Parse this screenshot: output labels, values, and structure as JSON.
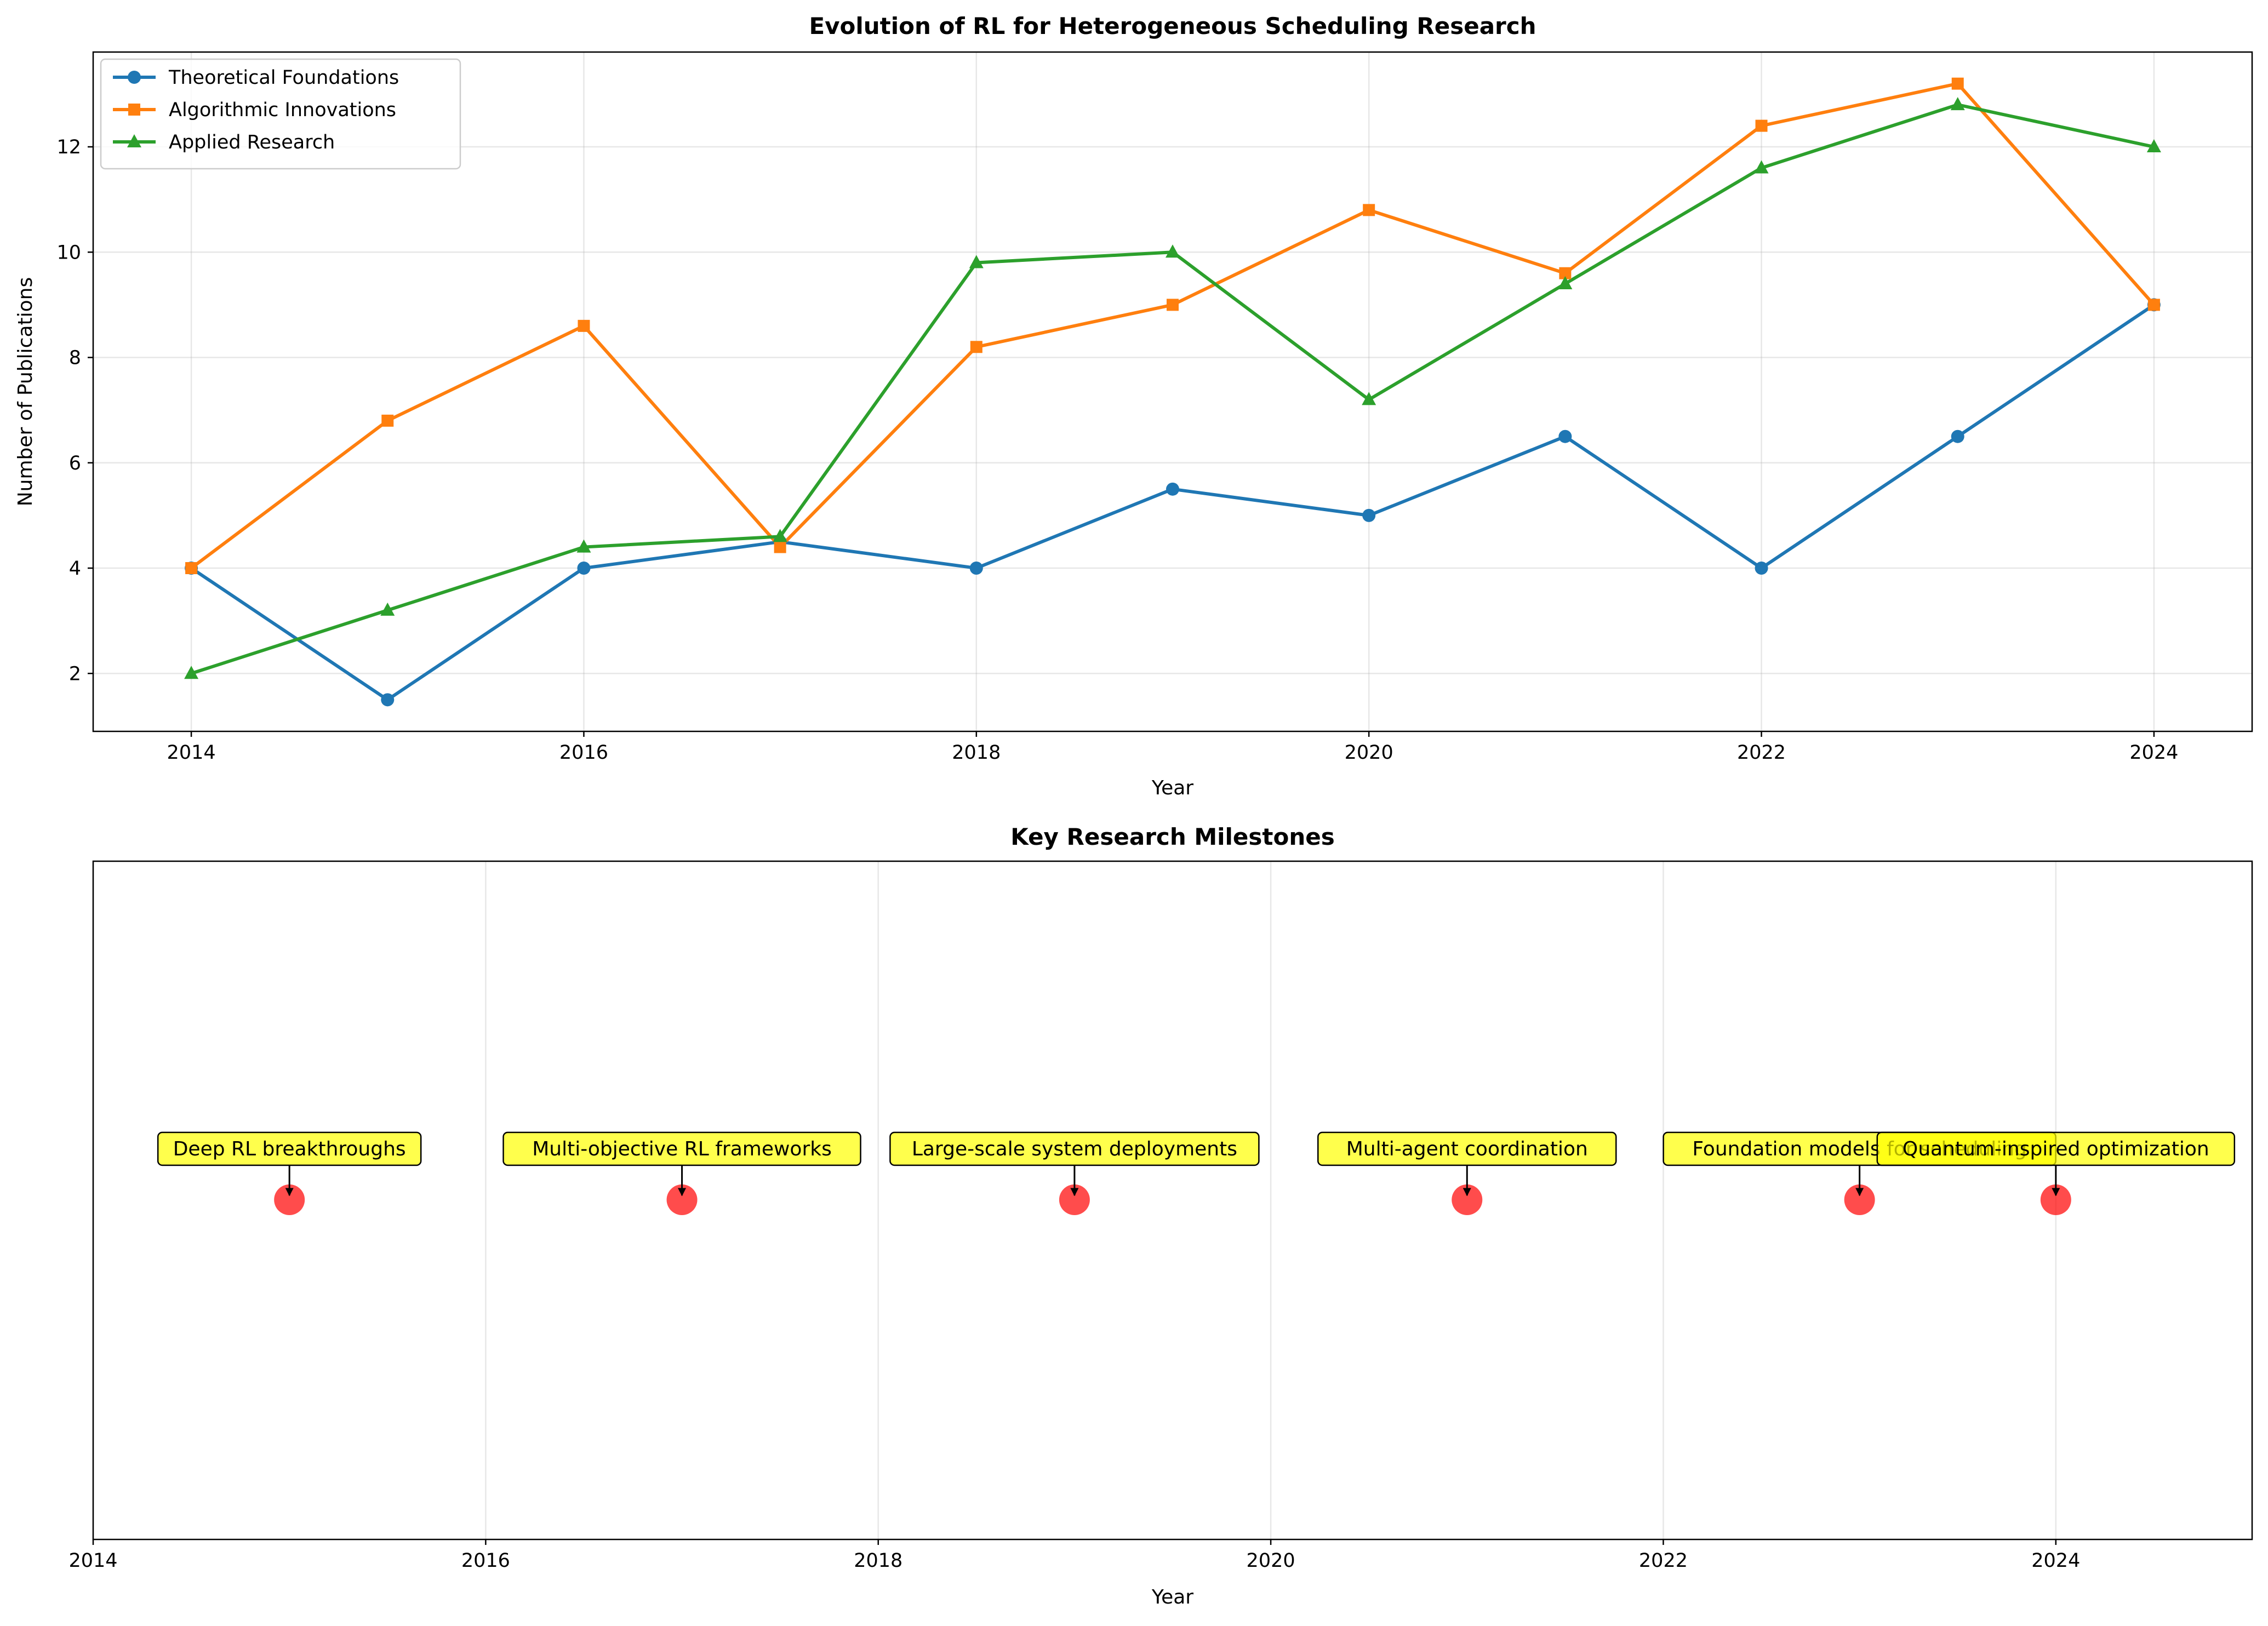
{
  "chart_data": [
    {
      "type": "line",
      "title": "Evolution of RL for Heterogeneous Scheduling Research",
      "xlabel": "Year",
      "ylabel": "Number of Publications",
      "x": [
        2014,
        2015,
        2016,
        2017,
        2018,
        2019,
        2020,
        2021,
        2022,
        2023,
        2024
      ],
      "xlim": [
        2013.5,
        2024.5
      ],
      "ylim": [
        0.9,
        13.8
      ],
      "xticks": [
        2014,
        2016,
        2018,
        2020,
        2022,
        2024
      ],
      "yticks": [
        2,
        4,
        6,
        8,
        10,
        12
      ],
      "grid": true,
      "legend_position": "top-left",
      "series": [
        {
          "name": "Theoretical Foundations",
          "color": "#1f77b4",
          "marker": "circle",
          "values": [
            4.0,
            1.5,
            4.0,
            4.5,
            4.0,
            5.5,
            5.0,
            6.5,
            4.0,
            6.5,
            9.0
          ]
        },
        {
          "name": "Algorithmic Innovations",
          "color": "#ff7f0e",
          "marker": "square",
          "values": [
            4.0,
            6.8,
            8.6,
            4.4,
            8.2,
            9.0,
            10.8,
            9.6,
            12.4,
            13.2,
            9.0
          ]
        },
        {
          "name": "Applied Research",
          "color": "#2ca02c",
          "marker": "triangle",
          "values": [
            2.0,
            3.2,
            4.4,
            4.6,
            9.8,
            10.0,
            7.2,
            9.4,
            11.6,
            12.8,
            12.0
          ]
        }
      ]
    },
    {
      "type": "scatter",
      "title": "Key Research Milestones",
      "xlabel": "Year",
      "xlim": [
        2014,
        2025
      ],
      "xticks": [
        2014,
        2016,
        2018,
        2020,
        2022,
        2024
      ],
      "grid": true,
      "point_color": "#ff0000",
      "label_box_color": "#ffff00",
      "milestones": [
        {
          "x": 2015,
          "label": "Deep RL breakthroughs"
        },
        {
          "x": 2017,
          "label": "Multi-objective RL frameworks"
        },
        {
          "x": 2019,
          "label": "Large-scale system deployments"
        },
        {
          "x": 2021,
          "label": "Multi-agent coordination"
        },
        {
          "x": 2023,
          "label": "Foundation models for scheduling"
        },
        {
          "x": 2024,
          "label": "Quantum-inspired optimization"
        }
      ]
    }
  ]
}
